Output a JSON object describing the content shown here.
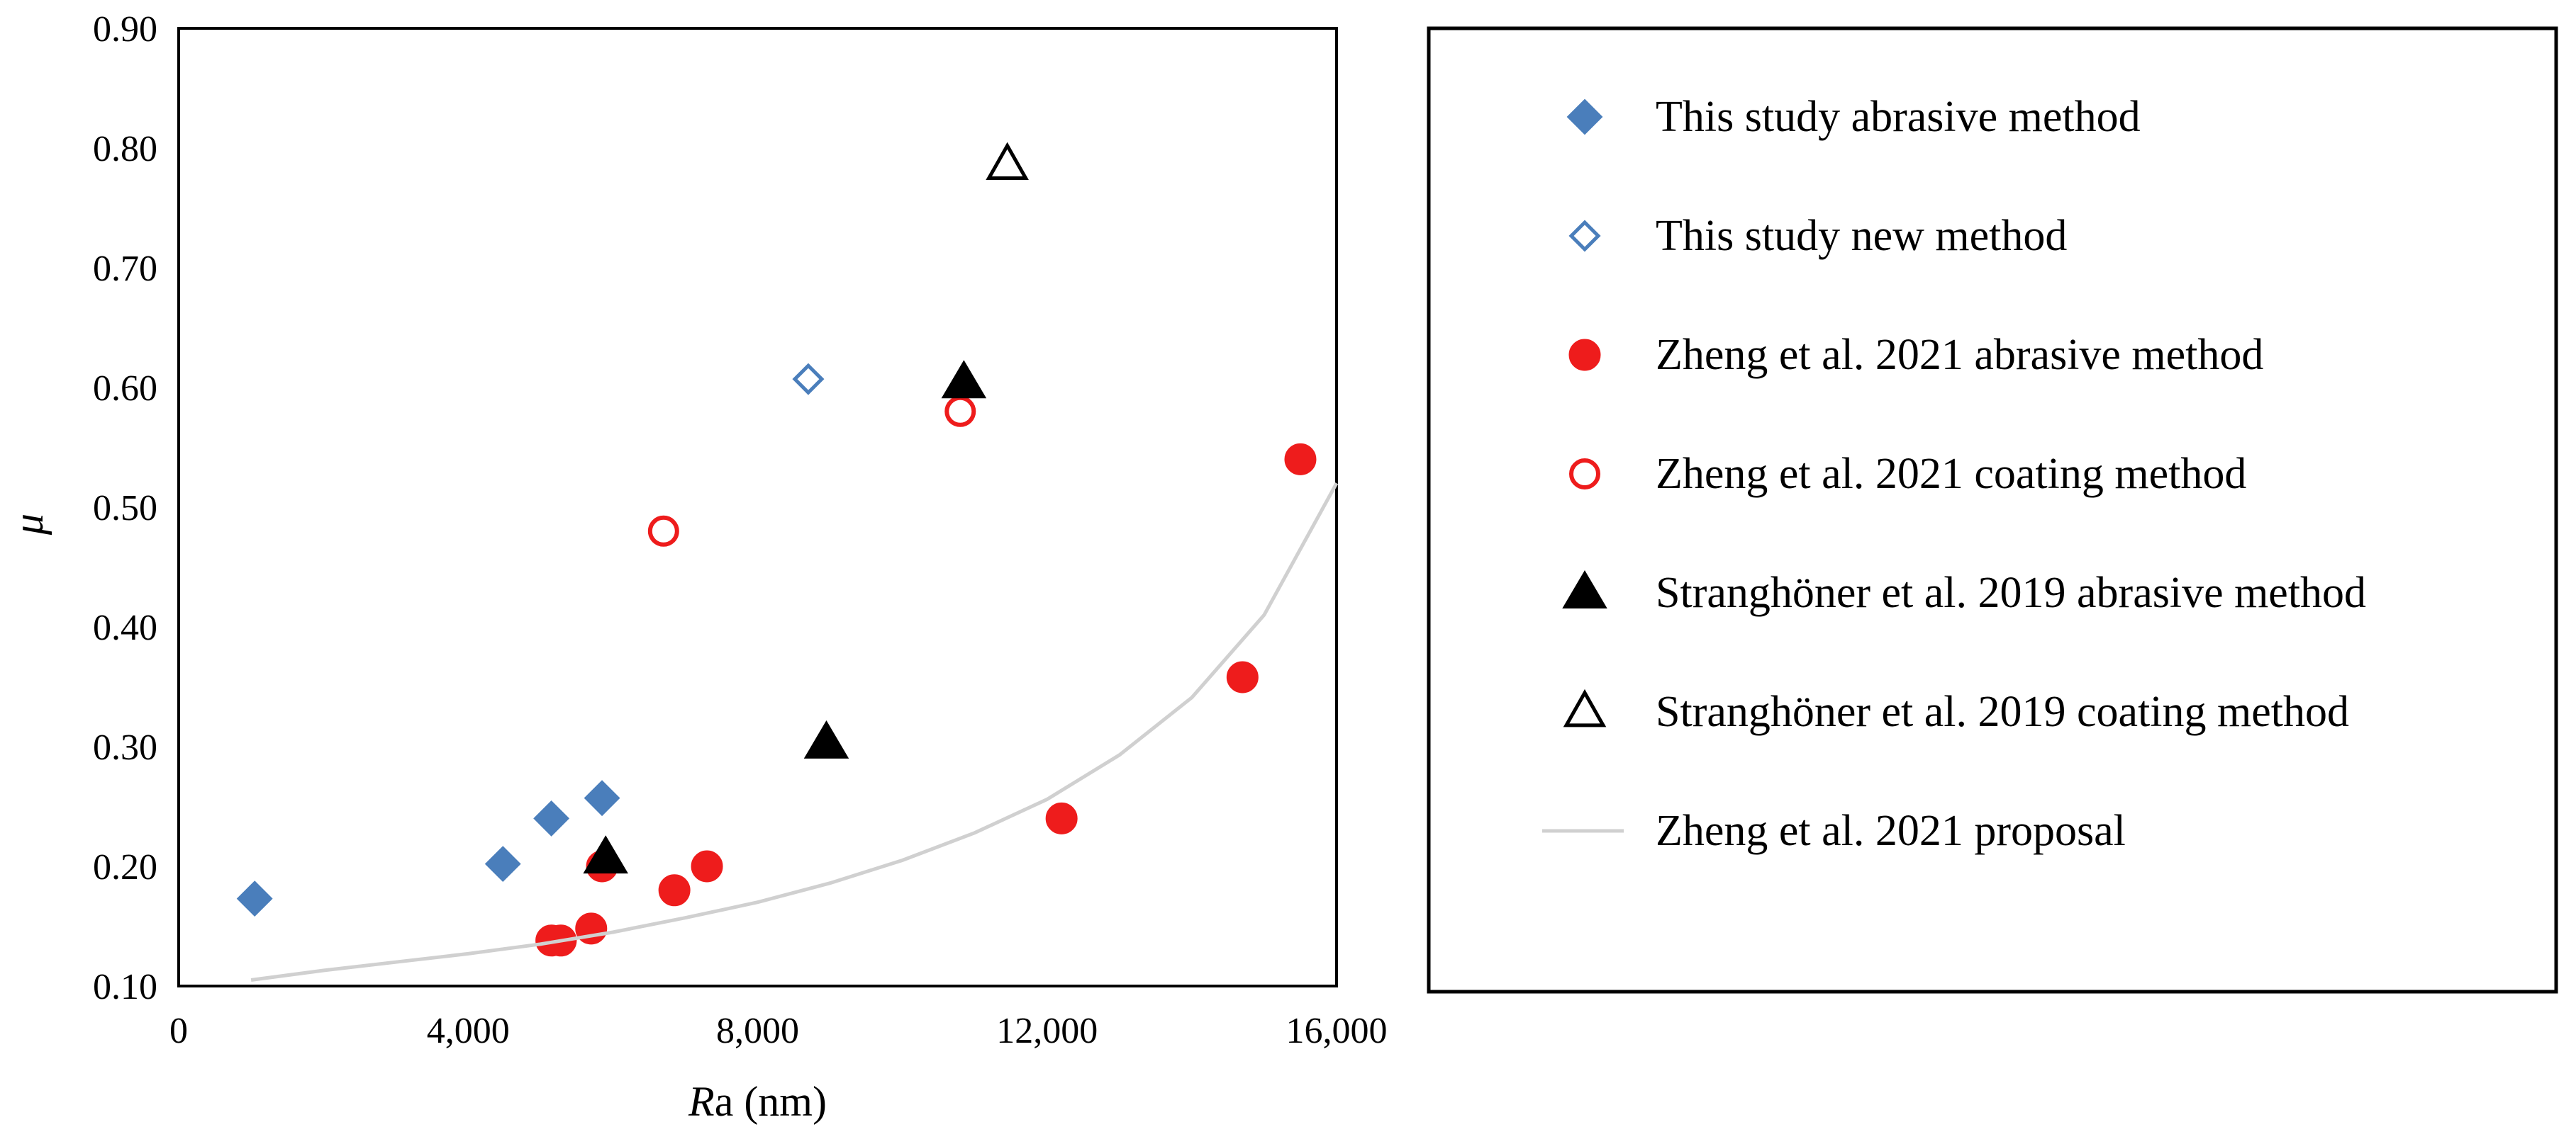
{
  "chart_data": {
    "type": "scatter",
    "title": "",
    "xlabel_italic": "R",
    "xlabel_rest": "a (nm)",
    "ylabel": "μ",
    "xlim": [
      0,
      16000
    ],
    "ylim": [
      0.1,
      0.9
    ],
    "x_ticks": [
      0,
      4000,
      8000,
      12000,
      16000
    ],
    "x_tick_labels": [
      "0",
      "4,000",
      "8,000",
      "12,000",
      "16,000"
    ],
    "y_ticks": [
      0.1,
      0.2,
      0.3,
      0.4,
      0.5,
      0.6,
      0.7,
      0.8,
      0.9
    ],
    "y_tick_labels": [
      "0.10",
      "0.20",
      "0.30",
      "0.40",
      "0.50",
      "0.60",
      "0.70",
      "0.80",
      "0.90"
    ],
    "grid": false,
    "legend_position": "right, outside plot",
    "series": [
      {
        "name": "This study abrasive method",
        "marker": "diamond-filled",
        "color": "#4A7EBB",
        "points": [
          [
            1050,
            0.173
          ],
          [
            4480,
            0.202
          ],
          [
            5150,
            0.24
          ],
          [
            5850,
            0.257
          ]
        ]
      },
      {
        "name": "This study new method",
        "marker": "diamond-open",
        "color": "#4A7EBB",
        "points": [
          [
            8700,
            0.607
          ]
        ]
      },
      {
        "name": "Zheng et al. 2021 abrasive method",
        "marker": "circle-filled",
        "color": "#EE1C1C",
        "points": [
          [
            5150,
            0.138
          ],
          [
            5280,
            0.138
          ],
          [
            5700,
            0.148
          ],
          [
            5850,
            0.2
          ],
          [
            6850,
            0.18
          ],
          [
            7300,
            0.2
          ],
          [
            12200,
            0.24
          ],
          [
            14700,
            0.358
          ],
          [
            15500,
            0.54
          ]
        ]
      },
      {
        "name": "Zheng et al. 2021 coating method",
        "marker": "circle-open",
        "color": "#EE1C1C",
        "points": [
          [
            6700,
            0.48
          ],
          [
            10800,
            0.58
          ]
        ]
      },
      {
        "name": "Stranghöner et al. 2019 abrasive method",
        "marker": "triangle-filled",
        "color": "#000000",
        "points": [
          [
            5900,
            0.207
          ],
          [
            8950,
            0.303
          ],
          [
            10850,
            0.604
          ]
        ]
      },
      {
        "name": "Stranghöner et al. 2019 coating method",
        "marker": "triangle-open",
        "color": "#000000",
        "points": [
          [
            11450,
            0.786
          ]
        ]
      },
      {
        "name": "Zheng et al. 2021 proposal",
        "marker": "line",
        "color": "#D0D0D0",
        "points": [
          [
            1000,
            0.105
          ],
          [
            2000,
            0.113
          ],
          [
            3000,
            0.12
          ],
          [
            4000,
            0.127
          ],
          [
            5000,
            0.135
          ],
          [
            6000,
            0.145
          ],
          [
            7000,
            0.157
          ],
          [
            8000,
            0.17
          ],
          [
            9000,
            0.186
          ],
          [
            10000,
            0.205
          ],
          [
            11000,
            0.228
          ],
          [
            12000,
            0.256
          ],
          [
            13000,
            0.293
          ],
          [
            14000,
            0.341
          ],
          [
            15000,
            0.41
          ],
          [
            16000,
            0.52
          ]
        ]
      }
    ]
  }
}
